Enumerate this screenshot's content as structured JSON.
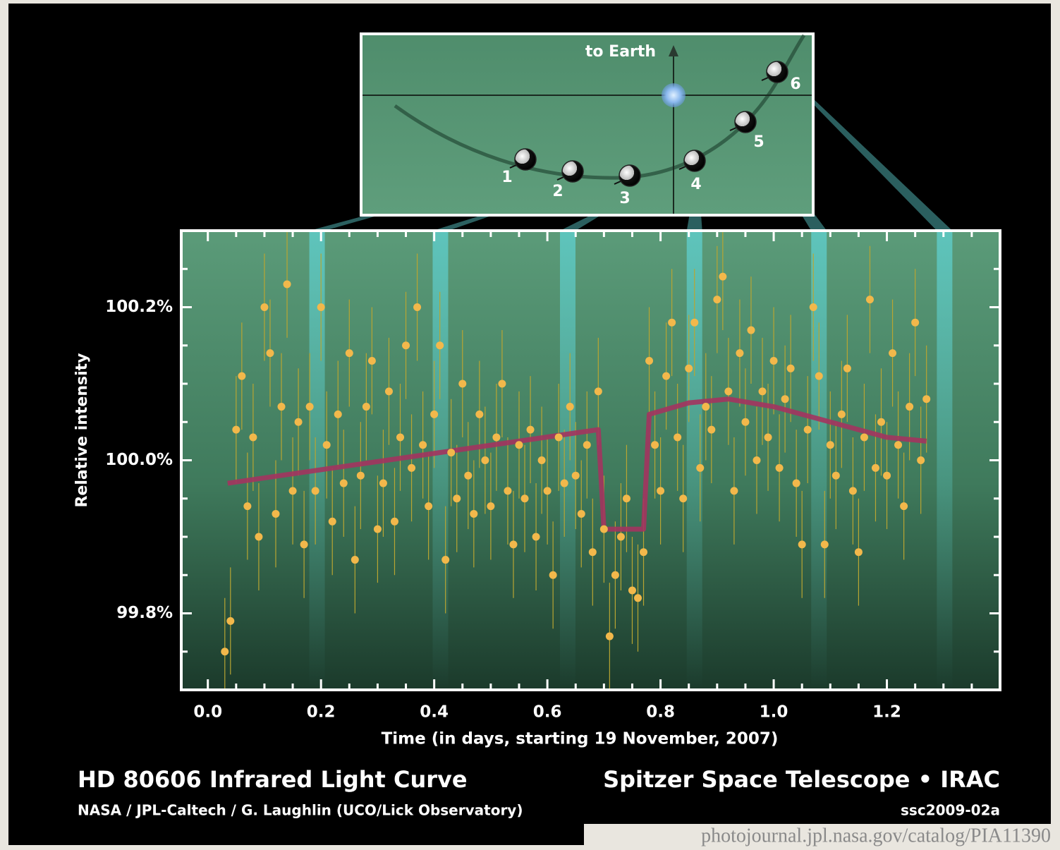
{
  "chart_data": {
    "type": "scatter",
    "title": "HD 80606 Infrared Light Curve",
    "credit": "NASA / JPL-Caltech / G. Laughlin (UCO/Lick Observatory)",
    "mission": "Spitzer Space Telescope • IRAC",
    "id": "ssc2009-02a",
    "url": "photojournal.jpl.nasa.gov/catalog/PIA11390",
    "x_label": "Time (in days, starting 19 November, 2007)",
    "y_label": "Relative intensity",
    "xlim": [
      -0.047,
      1.4
    ],
    "ylim": [
      99.7,
      100.3
    ],
    "xticks": [
      {
        "value": 0,
        "label": "0.0"
      },
      0.2,
      0.4,
      0.6,
      0.8,
      {
        "value": 1,
        "label": "1.0"
      },
      1.2
    ],
    "yticks": [
      {
        "value": 99.8,
        "label": "99.8%"
      },
      {
        "value": 100,
        "label": "100.0%"
      },
      {
        "value": 100.2,
        "label": "100.2%"
      }
    ],
    "xminorticks": [
      0.05,
      0.1,
      0.15,
      0.25,
      0.3,
      0.35,
      0.45,
      0.5,
      0.55,
      0.65,
      0.7,
      0.75,
      0.85,
      0.9,
      0.95,
      1.05,
      1.1,
      1.15,
      1.25,
      1.3,
      1.35
    ],
    "yminorticks": [
      99.75,
      99.85,
      99.9,
      99.95,
      100.05,
      100.1,
      100.15,
      100.25
    ],
    "series": [
      {
        "color": "#f2b84b",
        "error_color": "#b8a532",
        "yerr": 0.07,
        "x": [
          0.03,
          0.04,
          0.05,
          0.06,
          0.07,
          0.08,
          0.09,
          0.1,
          0.11,
          0.12,
          0.13,
          0.14,
          0.15,
          0.16,
          0.17,
          0.18,
          0.19,
          0.2,
          0.21,
          0.22,
          0.23,
          0.24,
          0.25,
          0.26,
          0.27,
          0.28,
          0.29,
          0.3,
          0.31,
          0.32,
          0.33,
          0.34,
          0.35,
          0.36,
          0.37,
          0.38,
          0.39,
          0.4,
          0.41,
          0.42,
          0.43,
          0.44,
          0.45,
          0.46,
          0.47,
          0.48,
          0.49,
          0.5,
          0.51,
          0.52,
          0.53,
          0.54,
          0.55,
          0.56,
          0.57,
          0.58,
          0.59,
          0.6,
          0.61,
          0.62,
          0.63,
          0.64,
          0.65,
          0.66,
          0.67,
          0.68,
          0.69,
          0.7,
          0.71,
          0.72,
          0.73,
          0.74,
          0.75,
          0.76,
          0.77,
          0.78,
          0.79,
          0.8,
          0.81,
          0.82,
          0.83,
          0.84,
          0.85,
          0.86,
          0.87,
          0.88,
          0.89,
          0.9,
          0.91,
          0.92,
          0.93,
          0.94,
          0.95,
          0.96,
          0.97,
          0.98,
          0.99,
          1,
          1.01,
          1.02,
          1.03,
          1.04,
          1.05,
          1.06,
          1.07,
          1.08,
          1.09,
          1.1,
          1.11,
          1.12,
          1.13,
          1.14,
          1.15,
          1.16,
          1.17,
          1.18,
          1.19,
          1.2,
          1.21,
          1.22,
          1.23,
          1.24,
          1.25,
          1.26,
          1.27
        ],
        "values": [
          99.75,
          99.79,
          100.04,
          100.11,
          99.94,
          100.03,
          99.9,
          100.2,
          100.14,
          99.93,
          100.07,
          100.23,
          99.96,
          100.05,
          99.89,
          100.07,
          99.96,
          100.2,
          100.02,
          99.92,
          100.06,
          99.97,
          100.14,
          99.87,
          99.98,
          100.07,
          100.13,
          99.91,
          99.97,
          100.09,
          99.92,
          100.03,
          100.15,
          99.99,
          100.2,
          100.02,
          99.94,
          100.06,
          100.15,
          99.87,
          100.01,
          99.95,
          100.1,
          99.98,
          99.93,
          100.06,
          100,
          99.94,
          100.03,
          100.1,
          99.96,
          99.89,
          100.02,
          99.95,
          100.04,
          99.9,
          100,
          99.96,
          99.85,
          100.03,
          99.97,
          100.07,
          99.98,
          99.93,
          100.02,
          99.88,
          100.09,
          99.91,
          99.77,
          99.85,
          99.9,
          99.95,
          99.83,
          99.82,
          99.88,
          100.13,
          100.02,
          99.96,
          100.11,
          100.18,
          100.03,
          99.95,
          100.12,
          100.18,
          99.99,
          100.07,
          100.04,
          100.21,
          100.24,
          100.09,
          99.96,
          100.14,
          100.05,
          100.17,
          100,
          100.09,
          100.03,
          100.13,
          99.99,
          100.08,
          100.12,
          99.97,
          99.89,
          100.04,
          100.2,
          100.11,
          99.89,
          100.02,
          99.98,
          100.06,
          100.12,
          99.96,
          99.88,
          100.03,
          100.21,
          99.99,
          100.05,
          99.98,
          100.14,
          100.02,
          99.94,
          100.07,
          100.18,
          100,
          100.08
        ]
      }
    ],
    "model": {
      "color": "#a3345f",
      "x": [
        0.035,
        0.69,
        0.7,
        0.77,
        0.78,
        0.85,
        0.92,
        1.0,
        1.1,
        1.2,
        1.27
      ],
      "values": [
        99.97,
        100.04,
        99.91,
        99.91,
        100.06,
        100.075,
        100.08,
        100.07,
        100.05,
        100.03,
        100.025
      ]
    },
    "orbit": {
      "label": "to Earth",
      "positions": [
        {
          "label": "1",
          "time": 0.193
        },
        {
          "label": "2",
          "time": 0.411
        },
        {
          "label": "3",
          "time": 0.636
        },
        {
          "label": "4",
          "time": 0.86
        },
        {
          "label": "5",
          "time": 1.08
        },
        {
          "label": "6",
          "time": 1.302
        }
      ]
    }
  }
}
